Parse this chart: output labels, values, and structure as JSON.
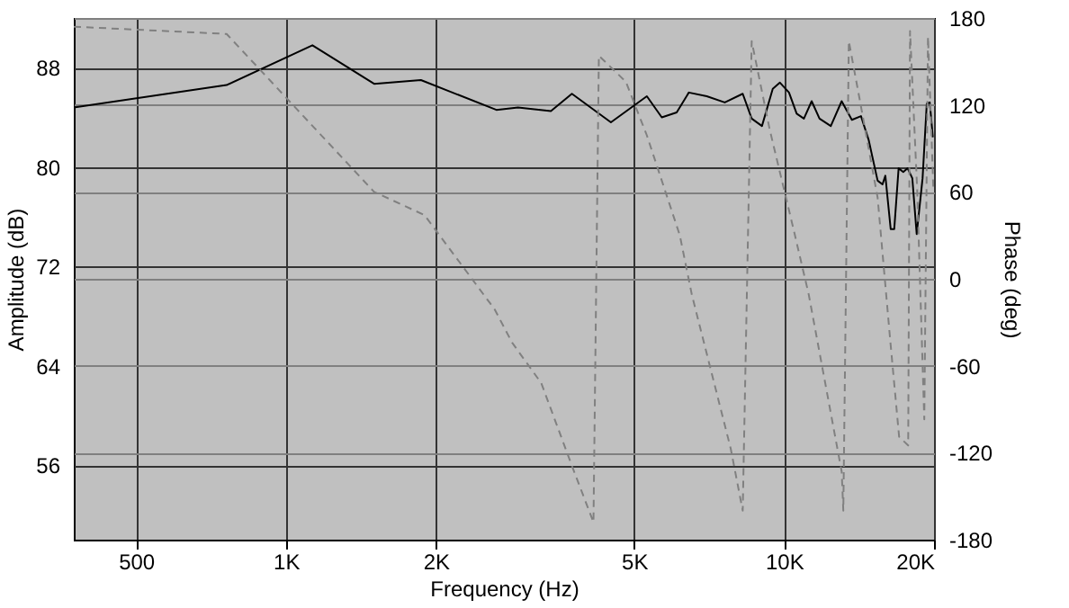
{
  "chart_data": {
    "type": "line",
    "xlabel": "Frequency (Hz)",
    "ylabel": "Amplitude (dB)",
    "y2label": "Phase (deg)",
    "log": "x",
    "grid": true,
    "xlim": [
      375,
      20000
    ],
    "xticks": [
      500,
      {
        "value": 1000,
        "label": "1K"
      },
      {
        "value": 2000,
        "label": "2K"
      },
      {
        "value": 5000,
        "label": "5K"
      },
      {
        "value": 10000,
        "label": "10K"
      },
      {
        "value": 20000,
        "label": "20K"
      }
    ],
    "ylim": [
      50,
      92
    ],
    "yticks": [
      56,
      64,
      72,
      80,
      88
    ],
    "y2lim": [
      -180,
      180
    ],
    "y2ticks": [
      -180,
      -120,
      -60,
      0,
      60,
      120,
      180
    ],
    "series": [
      {
        "color": "#000000",
        "line_style": "solid",
        "x": [
          375,
          760,
          1130,
          1503,
          1866,
          2645,
          2923,
          3403,
          3750,
          4491,
          5303,
          5682,
          6087,
          6438,
          6995,
          7602,
          8260,
          8610,
          9028,
          9490,
          9810,
          10230,
          10600,
          10960,
          11360,
          11780,
          12410,
          13050,
          13680,
          14270,
          14780,
          15410,
          15760,
          15970,
          16370,
          16640,
          16980,
          17350,
          17700,
          18090,
          18460,
          18970,
          19340,
          19610,
          19890
        ],
        "values": [
          84.8,
          86.6,
          89.8,
          86.7,
          87.0,
          84.6,
          84.8,
          84.5,
          85.9,
          83.6,
          85.7,
          84.0,
          84.4,
          86.0,
          85.7,
          85.2,
          85.9,
          83.9,
          83.3,
          86.3,
          86.8,
          86.0,
          84.3,
          83.9,
          85.3,
          83.9,
          83.3,
          85.3,
          83.8,
          84.1,
          82.2,
          78.9,
          78.6,
          79.3,
          75.0,
          75.0,
          79.9,
          79.6,
          79.9,
          79.1,
          74.6,
          79.1,
          85.1,
          85.2,
          82.4
        ]
      },
      {
        "color": "#808080",
        "line_style": "dashed",
        "axis": "y2",
        "x": [
          375,
          760,
          1503,
          1897,
          2623,
          2844,
          3255,
          3750,
          4143,
          4248,
          4812,
          5303,
          6176,
          6529,
          7812,
          8260,
          8610,
          9357,
          10450,
          11210,
          13050,
          13150,
          13490,
          14180,
          15410,
          16330,
          17020,
          17750,
          17900,
          18500,
          19120,
          19450,
          19940
        ],
        "values": [
          174,
          169,
          60,
          44,
          -21,
          -44,
          -72,
          -129,
          -168,
          154,
          136,
          99,
          30,
          -11,
          -117,
          -160,
          164,
          103,
          34,
          -11,
          -133,
          -160,
          164,
          124,
          56,
          -42,
          -109,
          -115,
          171,
          62,
          -97,
          167,
          62
        ]
      }
    ]
  }
}
